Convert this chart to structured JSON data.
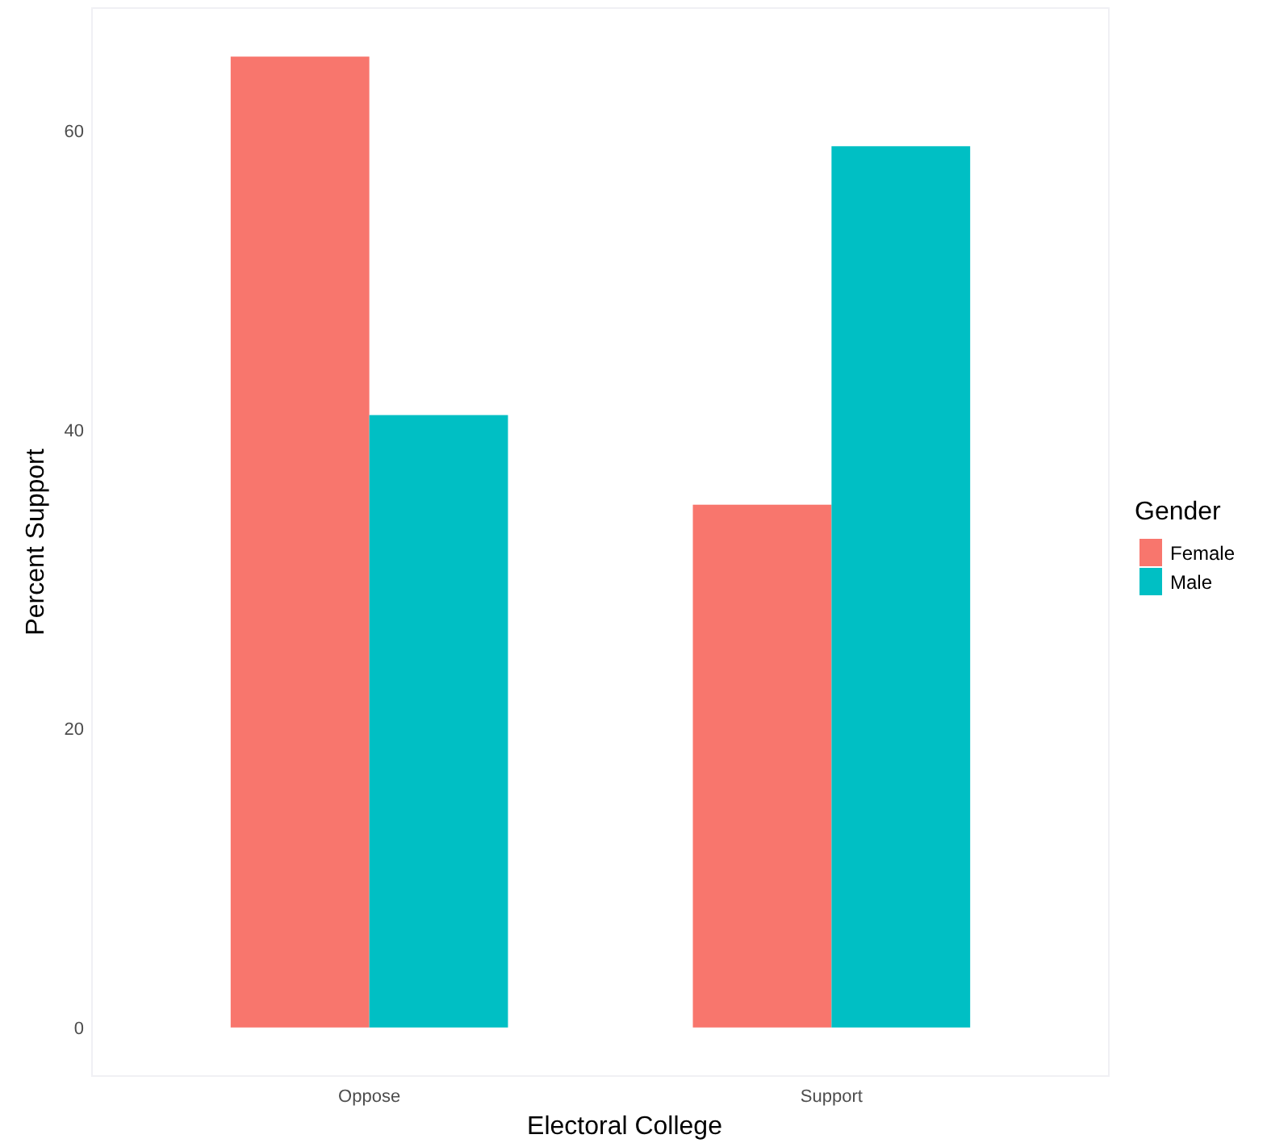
{
  "chart_data": {
    "type": "bar",
    "xlabel": "Electoral College",
    "ylabel": "Percent Support",
    "legend_title": "Gender",
    "categories": [
      "Oppose",
      "Support"
    ],
    "series": [
      {
        "name": "Female",
        "color": "#f8766d",
        "values": [
          65,
          35
        ]
      },
      {
        "name": "Male",
        "color": "#00bfc4",
        "values": [
          41,
          59
        ]
      }
    ],
    "ylim": [
      -3.25,
      68.25
    ],
    "yticks": [
      0,
      20,
      40,
      60
    ],
    "grid": false,
    "legend": "right"
  }
}
